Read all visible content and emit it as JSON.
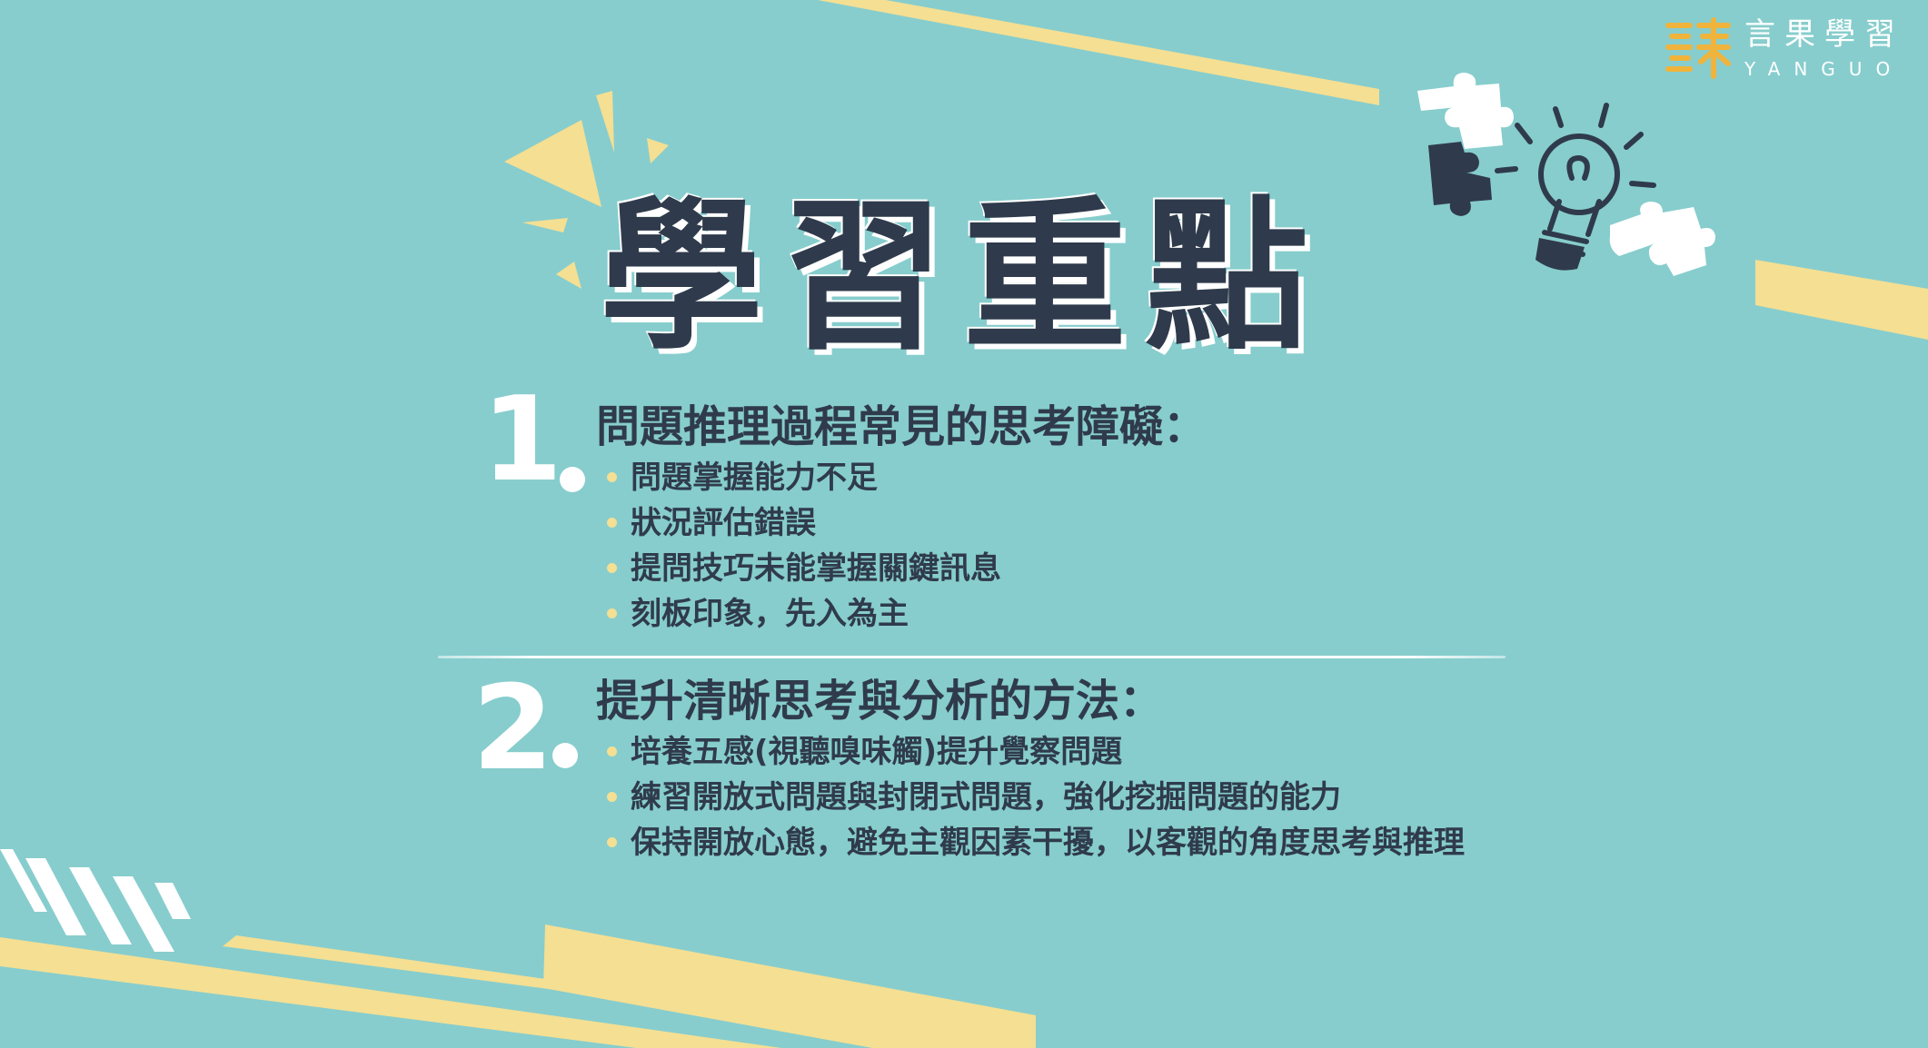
{
  "brand": {
    "name_cn": "言果學習",
    "name_en": "YANGUO"
  },
  "title": "學習重點",
  "sections": [
    {
      "number": "1",
      "heading": "問題推理過程常見的思考障礙：",
      "bullets": [
        "問題掌握能力不足",
        "狀況評估錯誤",
        "提問技巧未能掌握關鍵訊息",
        "刻板印象，先入為主"
      ]
    },
    {
      "number": "2",
      "heading": "提升清晰思考與分析的方法：",
      "bullets": [
        "培養五感(視聽嗅味觸)提升覺察問題",
        "練習開放式問題與封閉式問題，強化挖掘問題的能力",
        "保持開放心態，避免主觀因素干擾，以客觀的角度思考與推理"
      ]
    }
  ],
  "colors": {
    "background": "#87cdcd",
    "accent_yellow": "#f4df93",
    "text_dark": "#2f3b4c",
    "logo_orange": "#f0b43c"
  },
  "icons": [
    "puzzle-piece-icon",
    "light-bulb-icon",
    "burst-rays-icon"
  ]
}
